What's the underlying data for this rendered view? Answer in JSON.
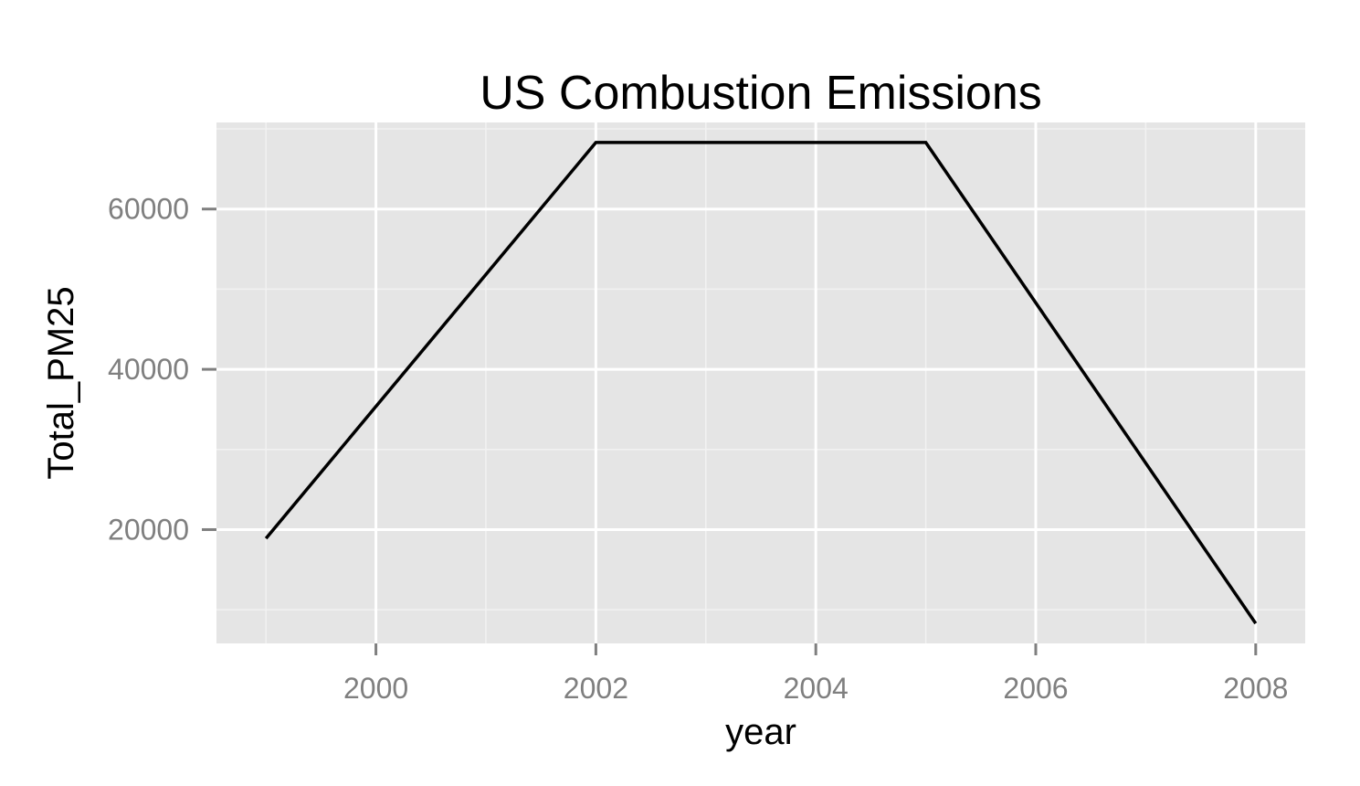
{
  "chart_data": {
    "type": "line",
    "title": "US Combustion Emissions",
    "xlabel": "year",
    "ylabel": "Total_PM25",
    "x": [
      1999,
      2002,
      2005,
      2008
    ],
    "series": [
      {
        "values": [
          18900,
          68300,
          68300,
          8300
        ],
        "color": "#000000"
      }
    ],
    "xlim": [
      1998.55,
      2008.45
    ],
    "ylim": [
      5800,
      70800
    ],
    "xticks": [
      2000,
      2002,
      2004,
      2006,
      2008
    ],
    "xtick_labels": [
      "2000",
      "2002",
      "2004",
      "2006",
      "2008"
    ],
    "yticks": [
      20000,
      40000,
      60000
    ],
    "ytick_labels": [
      "20000",
      "40000",
      "60000"
    ],
    "x_minor_ticks": [
      1999,
      2001,
      2003,
      2005,
      2007
    ],
    "y_minor_ticks": [
      10000,
      30000,
      50000,
      70000
    ],
    "grid": true,
    "panel_background": "#e5e5e5",
    "grid_color": "#ffffff"
  }
}
